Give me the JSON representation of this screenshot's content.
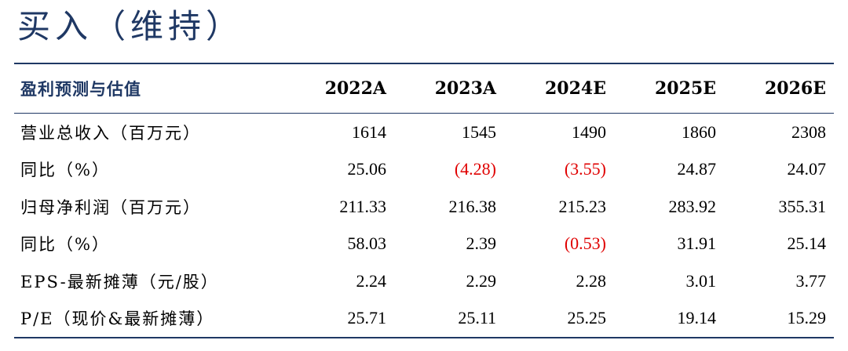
{
  "rating": "买入（维持）",
  "table": {
    "header_label": "盈利预测与估值",
    "years": [
      "2022A",
      "2023A",
      "2024E",
      "2025E",
      "2026E"
    ],
    "rows": [
      {
        "label": "营业总收入（百万元）",
        "values": [
          "1614",
          "1545",
          "1490",
          "1860",
          "2308"
        ],
        "negative": [
          false,
          false,
          false,
          false,
          false
        ]
      },
      {
        "label": "同比（%）",
        "values": [
          "25.06",
          "(4.28)",
          "(3.55)",
          "24.87",
          "24.07"
        ],
        "negative": [
          false,
          true,
          true,
          false,
          false
        ]
      },
      {
        "label": "归母净利润（百万元）",
        "values": [
          "211.33",
          "216.38",
          "215.23",
          "283.92",
          "355.31"
        ],
        "negative": [
          false,
          false,
          false,
          false,
          false
        ]
      },
      {
        "label": "同比（%）",
        "values": [
          "58.03",
          "2.39",
          "(0.53)",
          "31.91",
          "25.14"
        ],
        "negative": [
          false,
          false,
          true,
          false,
          false
        ]
      },
      {
        "label": "EPS-最新摊薄（元/股）",
        "values": [
          "2.24",
          "2.29",
          "2.28",
          "3.01",
          "3.77"
        ],
        "negative": [
          false,
          false,
          false,
          false,
          false
        ]
      },
      {
        "label": "P/E（现价&最新摊薄）",
        "values": [
          "25.71",
          "25.11",
          "25.25",
          "19.14",
          "15.29"
        ],
        "negative": [
          false,
          false,
          false,
          false,
          false
        ]
      }
    ],
    "colors": {
      "header_blue": "#1f3864",
      "negative_red": "#e00000"
    }
  }
}
